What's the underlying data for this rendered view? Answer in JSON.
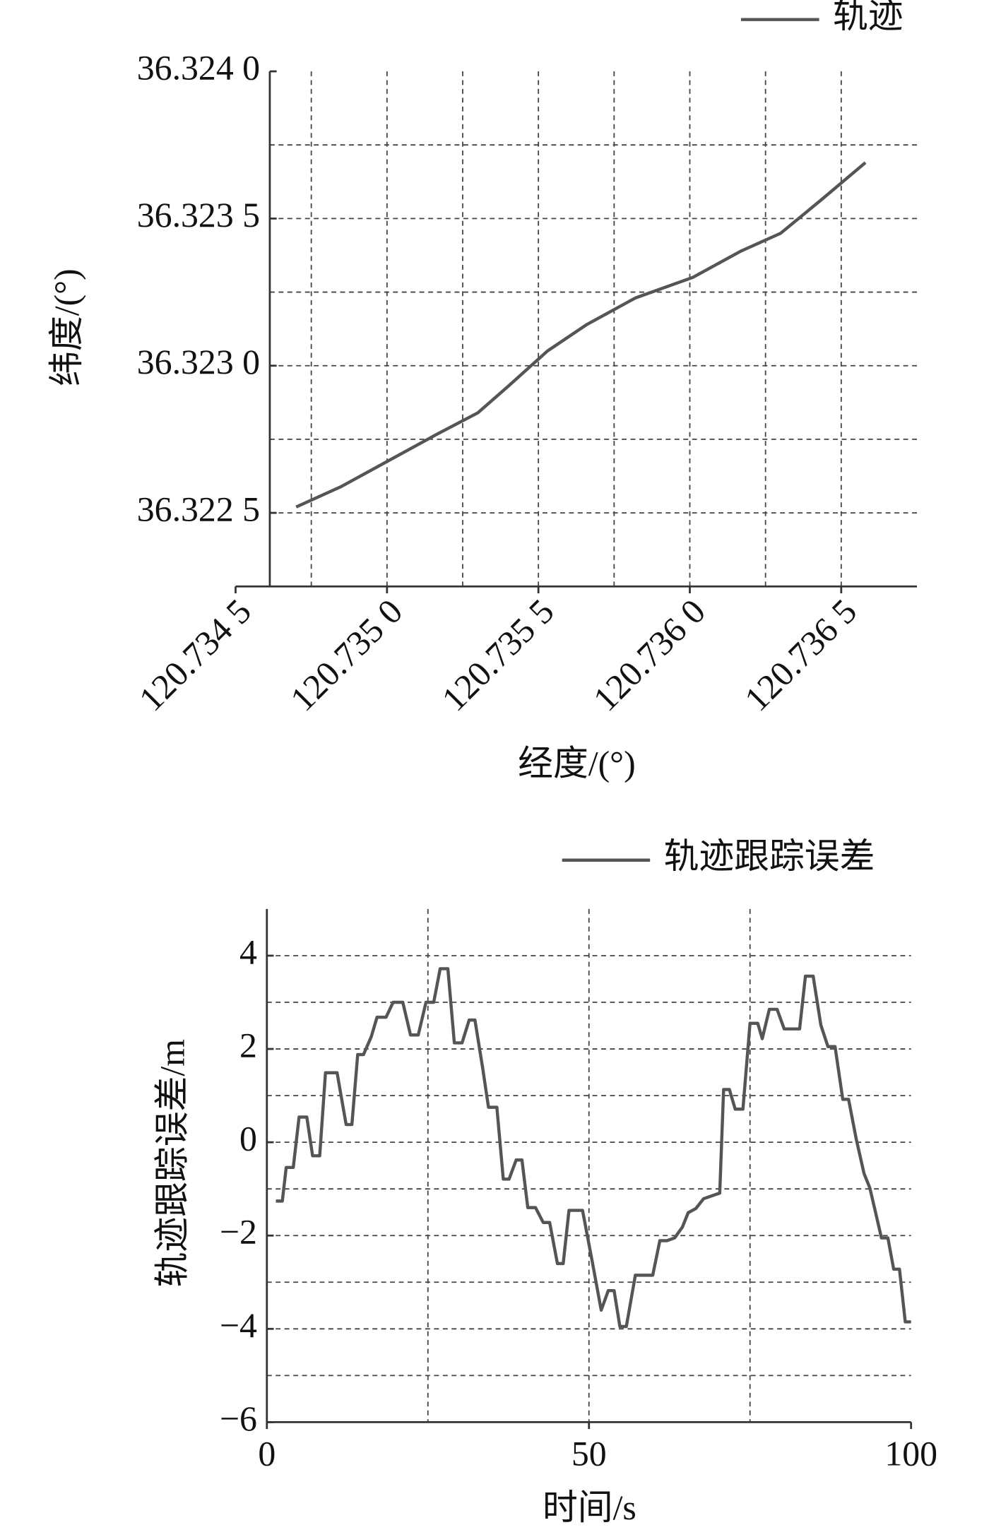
{
  "chart_data": [
    {
      "type": "line",
      "x_label": "经度/(°)",
      "y_label": "纬度/(°)",
      "legend": "upper right",
      "xlim": [
        120.7345,
        120.73675
      ],
      "ylim": [
        36.32225,
        36.324
      ],
      "xticks": [
        {
          "value": 120.7345,
          "label": "120.734 5"
        },
        {
          "value": 120.735,
          "label": "120.735 0"
        },
        {
          "value": 120.7355,
          "label": "120.735 5"
        },
        {
          "value": 120.736,
          "label": "120.736 0"
        },
        {
          "value": 120.7365,
          "label": "120.736 5"
        }
      ],
      "yticks": [
        {
          "value": 36.3225,
          "label": "36.322 5"
        },
        {
          "value": 36.323,
          "label": "36.323 0"
        },
        {
          "value": 36.3235,
          "label": "36.323 5"
        },
        {
          "value": 36.324,
          "label": "36.324 0"
        }
      ],
      "xminor": [
        120.73475,
        120.73525,
        120.73575,
        120.73625
      ],
      "yminor": [
        36.32275,
        36.32325,
        36.32375
      ],
      "grid": true,
      "series": [
        {
          "name": "轨迹",
          "color": "#555555",
          "x": [
            120.7347,
            120.73485,
            120.73501,
            120.73517,
            120.7353,
            120.7354,
            120.73553,
            120.73566,
            120.73582,
            120.73601,
            120.73617,
            120.7363,
            120.73643,
            120.73658
          ],
          "values": [
            36.32252,
            36.32259,
            36.32268,
            36.32277,
            36.32284,
            36.32293,
            36.32305,
            36.32314,
            36.32323,
            36.3233,
            36.32339,
            36.32345,
            36.32356,
            36.32369
          ]
        }
      ]
    },
    {
      "type": "line",
      "x_label": "时间/s",
      "y_label": "轨迹跟踪误差/m",
      "legend": "upper right",
      "xlim": [
        0,
        100
      ],
      "ylim": [
        -6,
        5
      ],
      "xticks": [
        0,
        50,
        100
      ],
      "yticks": [
        {
          "value": -6,
          "label": "−6"
        },
        {
          "value": -4,
          "label": "−4"
        },
        {
          "value": -2,
          "label": "−2"
        },
        0,
        2,
        4
      ],
      "xminor": [
        25,
        75
      ],
      "yminor": [
        -5,
        -3,
        -1,
        1,
        3
      ],
      "grid": true,
      "series": [
        {
          "name": "轨迹跟踪误差",
          "color": "#555555",
          "x": [
            1.4,
            2.4,
            3.0,
            4.1,
            5.0,
            6.2,
            7.1,
            8.2,
            9.1,
            10.9,
            12.3,
            13.2,
            14.1,
            15.0,
            16.2,
            17.1,
            18.5,
            19.6,
            21.1,
            22.3,
            23.5,
            24.7,
            25.9,
            26.9,
            28.1,
            29.1,
            30.3,
            31.4,
            32.3,
            33.5,
            34.4,
            35.7,
            36.7,
            37.6,
            38.7,
            39.6,
            40.5,
            41.7,
            42.9,
            43.9,
            45.1,
            46.0,
            46.9,
            49.0,
            50.5,
            51.9,
            53.0,
            53.9,
            54.8,
            55.8,
            57.2,
            59.9,
            61.0,
            62.1,
            63.3,
            64.5,
            65.4,
            66.6,
            67.8,
            70.3,
            70.9,
            71.8,
            72.7,
            73.9,
            75.0,
            76.2,
            76.9,
            78.0,
            79.2,
            80.3,
            82.7,
            83.6,
            84.8,
            86.0,
            87.1,
            88.2,
            89.4,
            90.3,
            91.5,
            92.7,
            93.6,
            94.5,
            95.4,
            96.4,
            97.3,
            98.2,
            99.1,
            100
          ],
          "values": [
            -1.26,
            -1.26,
            -0.54,
            -0.54,
            0.54,
            0.54,
            -0.29,
            -0.29,
            1.49,
            1.49,
            0.38,
            0.38,
            1.88,
            1.88,
            2.26,
            2.68,
            2.68,
            3.0,
            3.0,
            2.3,
            2.3,
            3.0,
            3.0,
            3.72,
            3.72,
            2.13,
            2.13,
            2.62,
            2.62,
            1.59,
            0.75,
            0.75,
            -0.79,
            -0.79,
            -0.38,
            -0.38,
            -1.4,
            -1.4,
            -1.72,
            -1.72,
            -2.6,
            -2.6,
            -1.46,
            -1.46,
            -2.55,
            -3.6,
            -3.18,
            -3.18,
            -3.95,
            -3.95,
            -2.85,
            -2.85,
            -2.11,
            -2.11,
            -2.05,
            -1.82,
            -1.51,
            -1.42,
            -1.21,
            -1.09,
            1.13,
            1.13,
            0.71,
            0.71,
            2.55,
            2.55,
            2.22,
            2.85,
            2.85,
            2.43,
            2.43,
            3.56,
            3.56,
            2.51,
            2.05,
            2.05,
            0.92,
            0.92,
            0.06,
            -0.67,
            -0.98,
            -1.51,
            -2.05,
            -2.05,
            -2.72,
            -2.72,
            -3.85,
            -3.85
          ]
        }
      ]
    }
  ]
}
